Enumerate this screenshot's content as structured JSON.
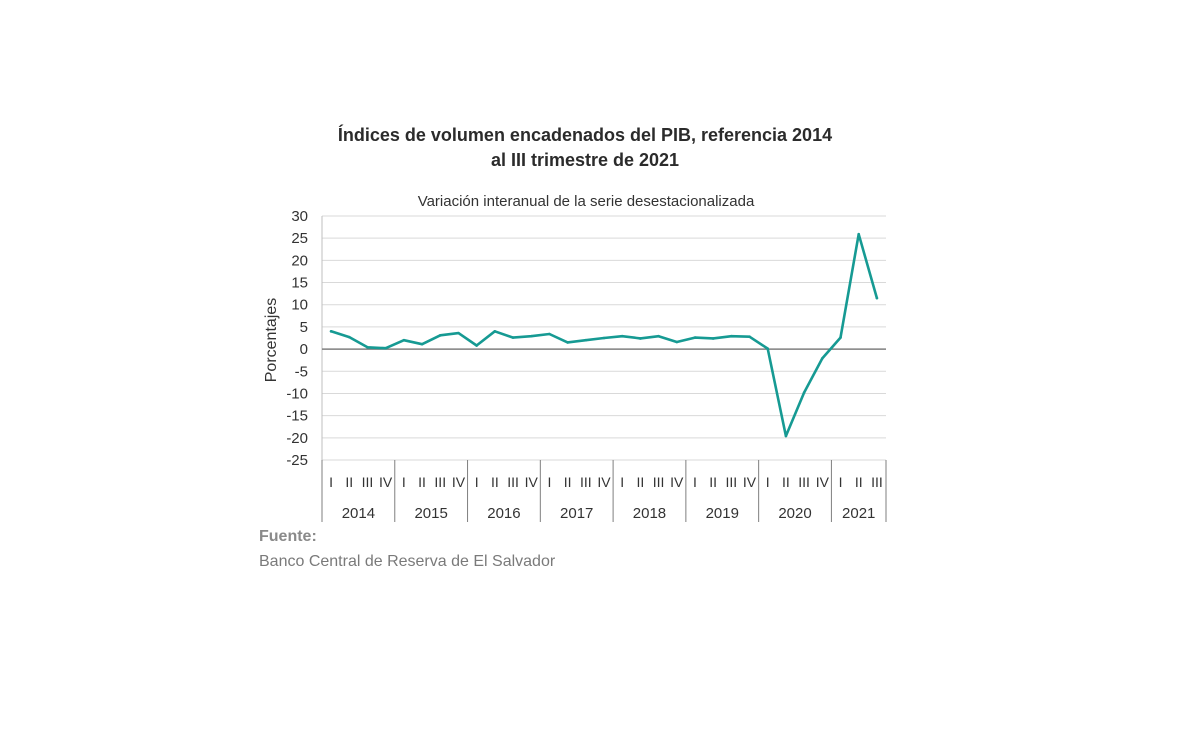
{
  "title_line1": "Índices de volumen encadenados del PIB, referencia 2014",
  "title_line2": "al III trimestre de 2021",
  "source": {
    "label": "Fuente:",
    "text": "Banco Central de Reserva de El Salvador"
  },
  "chart_data": {
    "type": "line",
    "title": "Índices de volumen encadenados del PIB, referencia 2014 al III trimestre de 2021",
    "subtitle": "Variación interanual de la serie desestacionalizada",
    "ylabel": "Porcentajes",
    "xlabel": "",
    "ylim": [
      -25,
      30
    ],
    "yticks": [
      30,
      25,
      20,
      15,
      10,
      5,
      0,
      -5,
      -10,
      -15,
      -20,
      -25
    ],
    "grid": true,
    "legend": "none",
    "line_color": "#169a93",
    "zero_line_color": "#7f7f7f",
    "years": [
      "2014",
      "2015",
      "2016",
      "2017",
      "2018",
      "2019",
      "2020",
      "2021"
    ],
    "quarters": [
      "I",
      "II",
      "III",
      "IV"
    ],
    "x": [
      "2014-I",
      "2014-II",
      "2014-III",
      "2014-IV",
      "2015-I",
      "2015-II",
      "2015-III",
      "2015-IV",
      "2016-I",
      "2016-II",
      "2016-III",
      "2016-IV",
      "2017-I",
      "2017-II",
      "2017-III",
      "2017-IV",
      "2018-I",
      "2018-II",
      "2018-III",
      "2018-IV",
      "2019-I",
      "2019-II",
      "2019-III",
      "2019-IV",
      "2020-I",
      "2020-II",
      "2020-III",
      "2020-IV",
      "2021-I",
      "2021-II",
      "2021-III"
    ],
    "values": [
      4.0,
      2.7,
      0.4,
      0.2,
      2.0,
      1.1,
      3.1,
      3.6,
      0.8,
      4.0,
      2.6,
      2.9,
      3.4,
      1.5,
      2.0,
      2.5,
      2.9,
      2.4,
      2.9,
      1.6,
      2.6,
      2.4,
      2.9,
      2.8,
      0.1,
      -19.6,
      -9.8,
      -2.1,
      2.6,
      25.9,
      11.5
    ]
  }
}
